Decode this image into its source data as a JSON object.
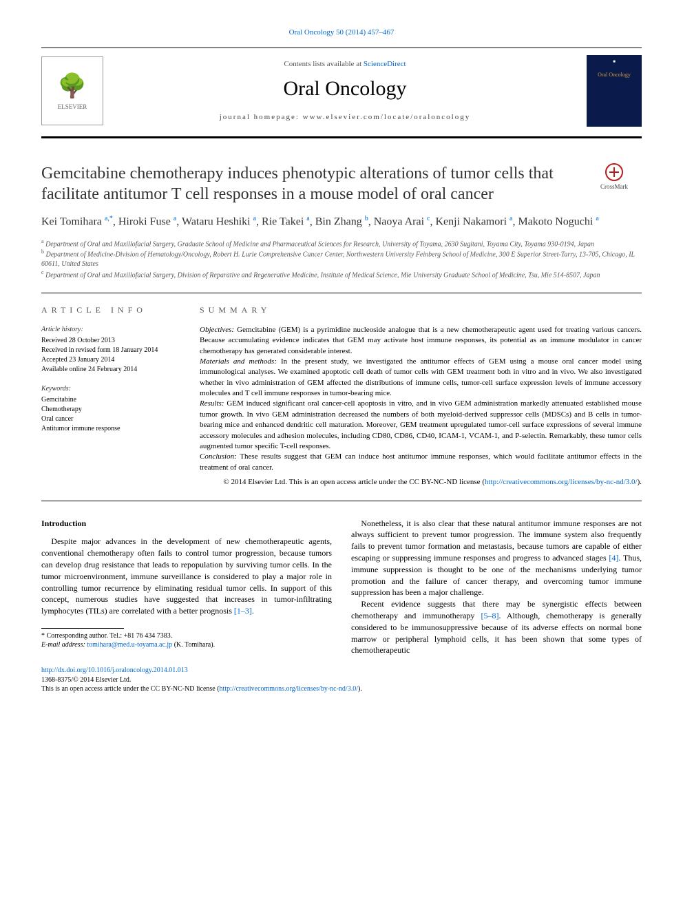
{
  "journalRef": "Oral Oncology 50 (2014) 457–467",
  "header": {
    "contentsPrefix": "Contents lists available at ",
    "contentsLink": "ScienceDirect",
    "journalName": "Oral Oncology",
    "homepagePrefix": "journal homepage: ",
    "homepage": "www.elsevier.com/locate/oraloncology",
    "elsevierLabel": "ELSEVIER",
    "coverTitle": "Oral Oncology"
  },
  "crossmarkLabel": "CrossMark",
  "title": "Gemcitabine chemotherapy induces phenotypic alterations of tumor cells that facilitate antitumor T cell responses in a mouse model of oral cancer",
  "authorsHtml": "Kei Tomihara <sup>a,*</sup>, Hiroki Fuse <sup>a</sup>, Wataru Heshiki <sup>a</sup>, Rie Takei <sup>a</sup>, Bin Zhang <sup>b</sup>, Naoya Arai <sup>c</sup>, Kenji Nakamori <sup>a</sup>, Makoto Noguchi <sup>a</sup>",
  "affiliations": [
    {
      "sup": "a",
      "text": "Department of Oral and Maxillofacial Surgery, Graduate School of Medicine and Pharmaceutical Sciences for Research, University of Toyama, 2630 Sugitani, Toyama City, Toyama 930-0194, Japan"
    },
    {
      "sup": "b",
      "text": "Department of Medicine-Division of Hematology/Oncology, Robert H. Lurie Comprehensive Cancer Center, Northwestern University Feinberg School of Medicine, 300 E Superior Street-Tarry, 13-705, Chicago, IL 60611, United States"
    },
    {
      "sup": "c",
      "text": "Department of Oral and Maxillofacial Surgery, Division of Reparative and Regenerative Medicine, Institute of Medical Science, Mie University Graduate School of Medicine, Tsu, Mie 514-8507, Japan"
    }
  ],
  "articleInfoHeading": "ARTICLE INFO",
  "history": {
    "label": "Article history:",
    "lines": [
      "Received 28 October 2013",
      "Received in revised form 18 January 2014",
      "Accepted 23 January 2014",
      "Available online 24 February 2014"
    ]
  },
  "keywords": {
    "label": "Keywords:",
    "items": [
      "Gemcitabine",
      "Chemotherapy",
      "Oral cancer",
      "Antitumor immune response"
    ]
  },
  "summaryHeading": "SUMMARY",
  "summary": {
    "objectivesLabel": "Objectives:",
    "objectives": " Gemcitabine (GEM) is a pyrimidine nucleoside analogue that is a new chemotherapeutic agent used for treating various cancers. Because accumulating evidence indicates that GEM may activate host immune responses, its potential as an immune modulator in cancer chemotherapy has generated considerable interest.",
    "materialsLabel": "Materials and methods:",
    "materials": " In the present study, we investigated the antitumor effects of GEM using a mouse oral cancer model using immunological analyses. We examined apoptotic cell death of tumor cells with GEM treatment both in vitro and in vivo. We also investigated whether in vivo administration of GEM affected the distributions of immune cells, tumor-cell surface expression levels of immune accessory molecules and T cell immune responses in tumor-bearing mice.",
    "resultsLabel": "Results:",
    "results": " GEM induced significant oral cancer-cell apoptosis in vitro, and in vivo GEM administration markedly attenuated established mouse tumor growth. In vivo GEM administration decreased the numbers of both myeloid-derived suppressor cells (MDSCs) and B cells in tumor-bearing mice and enhanced dendritic cell maturation. Moreover, GEM treatment upregulated tumor-cell surface expressions of several immune accessory molecules and adhesion molecules, including CD80, CD86, CD40, ICAM-1, VCAM-1, and P-selectin. Remarkably, these tumor cells augmented tumor specific T-cell responses.",
    "conclusionLabel": "Conclusion:",
    "conclusion": " These results suggest that GEM can induce host antitumor immune responses, which would facilitate antitumor effects in the treatment of oral cancer."
  },
  "copyright": {
    "text": "© 2014 Elsevier Ltd. This is an open access article under the CC BY-NC-ND license (",
    "linkText": "http://creativecommons.org/licenses/by-nc-nd/3.0/",
    "suffix": ")."
  },
  "introHeading": "Introduction",
  "body": {
    "p1a": "Despite major advances in the development of new chemotherapeutic agents, conventional chemotherapy often fails to control tumor progression, because tumors can develop drug resistance that leads to repopulation by surviving tumor cells. In the tumor microenvironment, immune surveillance is considered to play a major role in controlling tumor recurrence by eliminating residual tumor cells. In support of this concept, numerous studies have suggested that increases in tumor-infiltrating lymphocytes (TILs) are correlated with a better prognosis ",
    "p1ref": "[1–3]",
    "p1b": ".",
    "p2a": "Nonetheless, it is also clear that these natural antitumor immune responses are not always sufficient to prevent tumor progression. The immune system also frequently fails to prevent tumor formation and metastasis, because tumors are capable of either escaping or suppressing immune responses and progress to advanced stages ",
    "p2ref": "[4]",
    "p2b": ". Thus, immune suppression is thought to be one of the mechanisms underlying tumor promotion and the failure of cancer therapy, and overcoming tumor immune suppression has been a major challenge.",
    "p3a": "Recent evidence suggests that there may be synergistic effects between chemotherapy and immunotherapy ",
    "p3ref": "[5–8]",
    "p3b": ". Although, chemotherapy is generally considered to be immunosuppressive because of its adverse effects on normal bone marrow or peripheral lymphoid cells, it has been shown that some types of chemotherapeutic"
  },
  "footnotes": {
    "corrLabel": "* Corresponding author. Tel.: +81 76 434 7383.",
    "emailLabel": "E-mail address: ",
    "email": "tomihara@med.u-toyama.ac.jp",
    "emailSuffix": " (K. Tomihara)."
  },
  "doi": {
    "link": "http://dx.doi.org/10.1016/j.oraloncology.2014.01.013",
    "issn": "1368-8375/© 2014 Elsevier Ltd.",
    "oa": "This is an open access article under the CC BY-NC-ND license (",
    "oaLink": "http://creativecommons.org/licenses/by-nc-nd/3.0/",
    "oaSuffix": ")."
  },
  "colors": {
    "link": "#0066cc",
    "text": "#000000",
    "muted": "#555555",
    "coverBg": "#0a1a4a",
    "coverAccent": "#d49a3a",
    "crossmarkRed": "#b91c1c"
  },
  "typography": {
    "bodyFont": "Times New Roman",
    "titleSizePx": 24,
    "journalNameSizePx": 30,
    "bodySizePx": 12,
    "summarySizePx": 11,
    "metaSizePx": 10
  }
}
